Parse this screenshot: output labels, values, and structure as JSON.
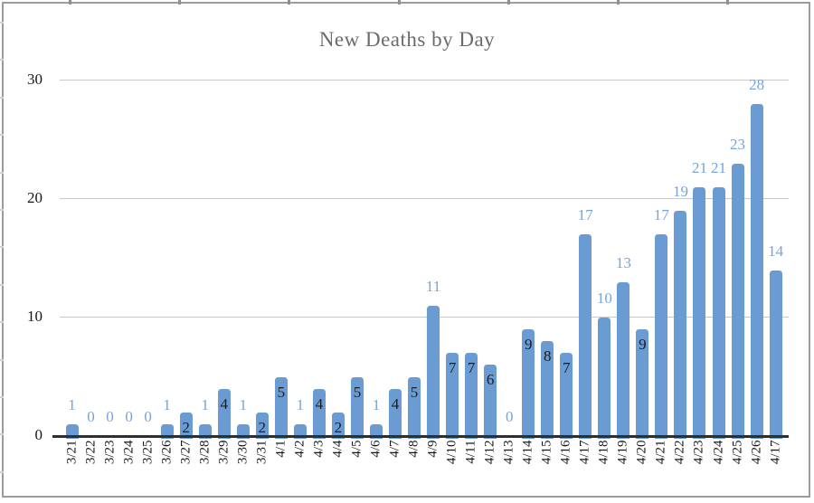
{
  "chart_data": {
    "type": "bar",
    "title": "New Deaths by Day",
    "categories": [
      "3/21",
      "3/22",
      "3/23",
      "3/24",
      "3/25",
      "3/26",
      "3/27",
      "3/28",
      "3/29",
      "3/30",
      "3/31",
      "4/1",
      "4/2",
      "4/3",
      "4/4",
      "4/5",
      "4/6",
      "4/7",
      "4/8",
      "4/9",
      "4/10",
      "4/11",
      "4/12",
      "4/13",
      "4/14",
      "4/15",
      "4/16",
      "4/17",
      "4/18",
      "4/19",
      "4/20",
      "4/21",
      "4/22",
      "4/23",
      "4/24",
      "4/25",
      "4/26",
      "4/17"
    ],
    "values": [
      1,
      0,
      0,
      0,
      0,
      1,
      2,
      1,
      4,
      1,
      2,
      5,
      1,
      4,
      2,
      5,
      1,
      4,
      5,
      11,
      7,
      7,
      6,
      0,
      9,
      8,
      7,
      17,
      10,
      13,
      9,
      17,
      19,
      21,
      21,
      23,
      28,
      14
    ],
    "xlabel": "",
    "ylabel": "",
    "yticks": [
      0,
      10,
      20,
      30
    ],
    "ylim": [
      0,
      30
    ],
    "grid": true,
    "legend": "none",
    "label_rule_inside_range": [
      2,
      9
    ],
    "colors": {
      "bar": "#6a9cd3",
      "label_outside": "#76a3db",
      "label_inside": "#1c1c1c",
      "title": "#6b6b6b",
      "gridline": "#c9c9c9",
      "axis_line": "#2f2f2f",
      "frame_border": "#9c9c9c"
    }
  }
}
